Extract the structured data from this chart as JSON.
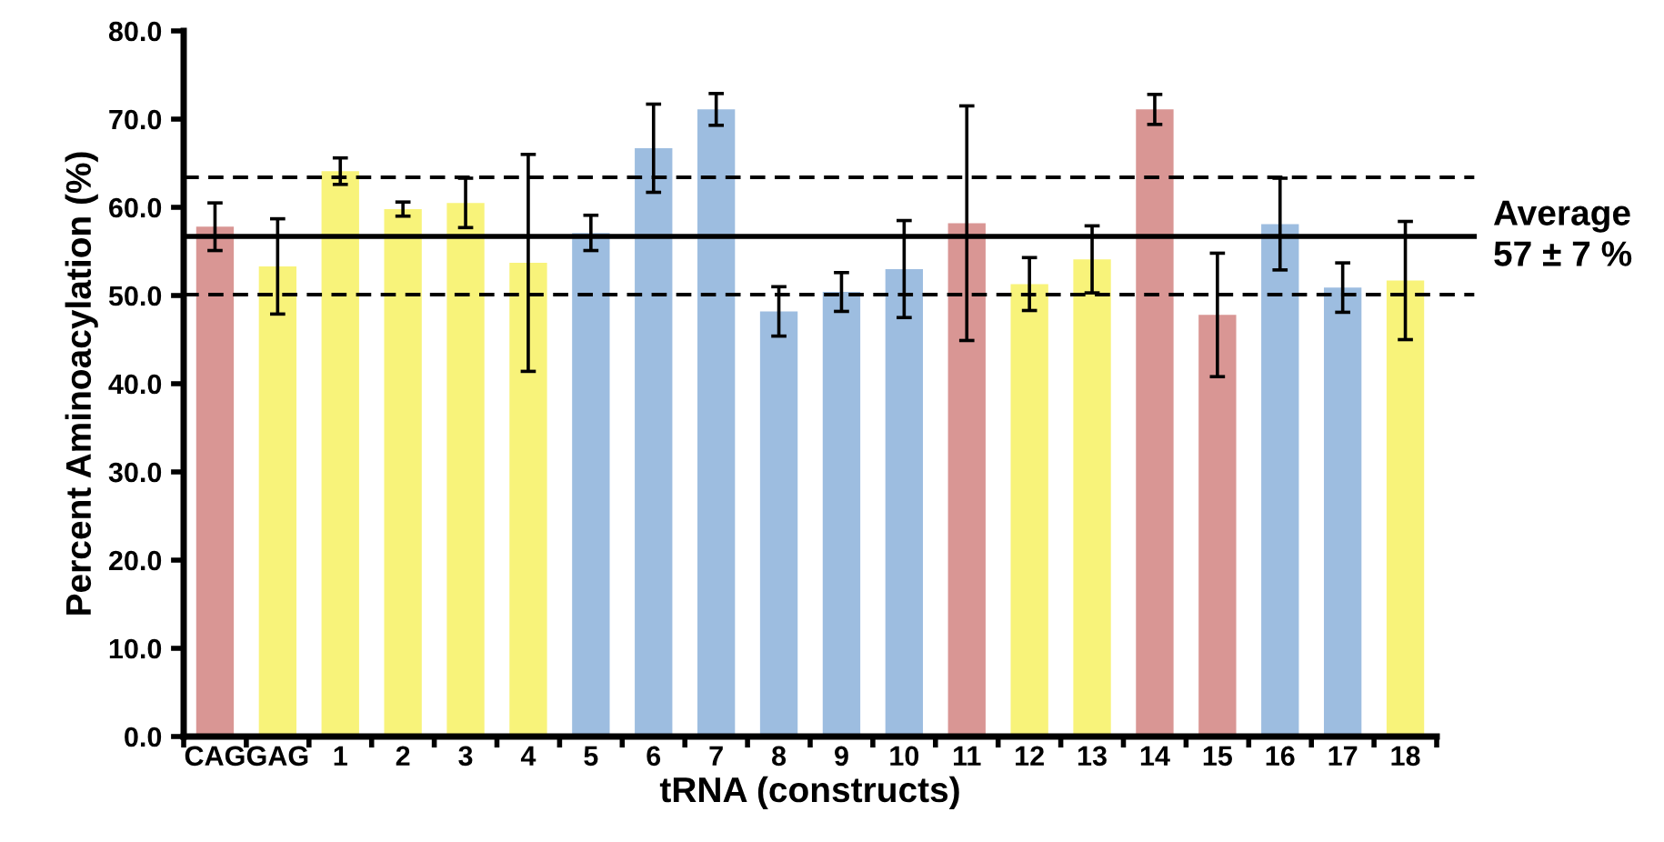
{
  "chart_data": {
    "type": "bar",
    "xlabel": "tRNA (constructs)",
    "ylabel": "Percent Aminoacylation (%)",
    "categories": [
      "CAG",
      "GAG",
      "1",
      "2",
      "3",
      "4",
      "5",
      "6",
      "7",
      "8",
      "9",
      "10",
      "11",
      "12",
      "13",
      "14",
      "15",
      "16",
      "17",
      "18"
    ],
    "values": [
      57.8,
      53.3,
      64.1,
      59.8,
      60.5,
      53.7,
      57.1,
      66.7,
      71.1,
      48.2,
      50.4,
      53.0,
      58.2,
      51.3,
      54.1,
      71.1,
      47.8,
      58.1,
      50.9,
      51.7
    ],
    "errors": [
      2.7,
      5.4,
      1.5,
      0.8,
      2.8,
      12.3,
      2.0,
      5.0,
      1.8,
      2.8,
      2.2,
      5.5,
      13.3,
      3.0,
      3.8,
      1.7,
      7.0,
      5.2,
      2.8,
      6.7
    ],
    "colors": [
      "#d99694",
      "#f8f37a",
      "#f8f37a",
      "#f8f37a",
      "#f8f37a",
      "#f8f37a",
      "#9dbde0",
      "#9dbde0",
      "#9dbde0",
      "#9dbde0",
      "#9dbde0",
      "#9dbde0",
      "#d99694",
      "#f8f37a",
      "#f8f37a",
      "#d99694",
      "#d99694",
      "#9dbde0",
      "#9dbde0",
      "#f8f37a"
    ],
    "ylim": [
      0,
      80
    ],
    "yticks": [
      {
        "value": 0,
        "label": "0.0"
      },
      {
        "value": 10,
        "label": "10.0"
      },
      {
        "value": 20,
        "label": "20.0"
      },
      {
        "value": 30,
        "label": "30.0"
      },
      {
        "value": 40,
        "label": "40.0"
      },
      {
        "value": 50,
        "label": "50.0"
      },
      {
        "value": 60,
        "label": "60.0"
      },
      {
        "value": 70,
        "label": "70.0"
      },
      {
        "value": 80,
        "label": "80.0"
      }
    ],
    "ref_lines": [
      {
        "axis": "y",
        "value": 56.7,
        "line_style": "solid",
        "color": "#000000"
      },
      {
        "axis": "y",
        "value": 63.4,
        "line_style": "dashed",
        "color": "#000000"
      },
      {
        "axis": "y",
        "value": 50.1,
        "line_style": "dashed",
        "color": "#000000"
      }
    ],
    "annotations": [
      "Average",
      "57 ± 7 %"
    ],
    "grid": false,
    "legend": false
  }
}
